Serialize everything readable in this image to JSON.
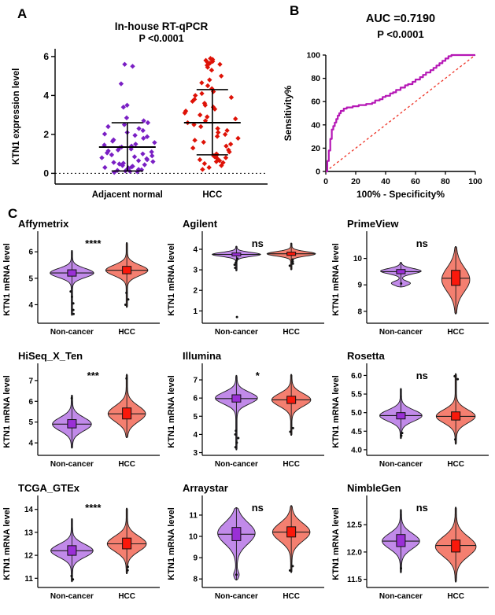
{
  "panels": {
    "a": {
      "label": "A"
    },
    "b": {
      "label": "B"
    },
    "c": {
      "label": "C"
    }
  },
  "chart_data": [
    {
      "id": "panel_a",
      "type": "scatter",
      "panel_label": "A",
      "title": "In-house RT-qPCR",
      "subtitle": "P <0.0001",
      "ylabel": "KTN1 expression level",
      "ylim": [
        -0.55,
        6.4
      ],
      "yticks": [
        "0",
        "2",
        "4",
        "6"
      ],
      "zero_line": 0,
      "groups": [
        {
          "label": "Adjacent normal",
          "color": "#7A1FC4",
          "mean": 1.35,
          "sd_low": 0.12,
          "sd_high": 2.6,
          "values": [
            0.05,
            0.08,
            0.1,
            0.12,
            0.15,
            0.18,
            0.2,
            0.22,
            0.25,
            0.28,
            0.3,
            0.33,
            0.36,
            0.4,
            0.44,
            0.48,
            0.52,
            0.56,
            0.6,
            0.65,
            0.7,
            0.75,
            0.8,
            0.85,
            0.9,
            0.95,
            1.0,
            1.05,
            1.1,
            1.15,
            1.2,
            1.25,
            1.3,
            1.35,
            1.4,
            1.45,
            1.5,
            1.58,
            1.65,
            1.72,
            1.8,
            1.88,
            1.95,
            2.02,
            2.1,
            2.2,
            2.3,
            2.4,
            2.5,
            2.6,
            2.7,
            2.85,
            3.4,
            3.5,
            4.6,
            5.5,
            5.6
          ]
        },
        {
          "label": "HCC",
          "color": "#DE1207",
          "mean": 2.6,
          "sd_low": 0.95,
          "sd_high": 4.3,
          "values": [
            0.2,
            0.3,
            0.4,
            0.5,
            0.55,
            0.6,
            0.65,
            0.7,
            0.75,
            0.8,
            0.85,
            0.9,
            0.95,
            1.0,
            1.1,
            1.2,
            1.3,
            1.4,
            1.5,
            1.6,
            1.7,
            1.8,
            1.9,
            2.0,
            2.1,
            2.2,
            2.3,
            2.4,
            2.5,
            2.6,
            2.7,
            2.8,
            2.9,
            3.0,
            3.1,
            3.2,
            3.3,
            3.4,
            3.5,
            3.6,
            3.7,
            3.8,
            3.9,
            4.0,
            4.1,
            4.2,
            4.35,
            4.5,
            4.65,
            4.8,
            5.0,
            5.3,
            5.45,
            5.55,
            5.6,
            5.65,
            5.7,
            5.75,
            5.8,
            5.85,
            5.9
          ]
        }
      ]
    },
    {
      "id": "panel_b",
      "type": "line",
      "panel_label": "B",
      "title": "AUC =0.7190",
      "subtitle": "P <0.0001",
      "xlabel": "100% - Specificity%",
      "ylabel": "Sensitivity%",
      "xlim": [
        0,
        100
      ],
      "ylim": [
        0,
        100
      ],
      "xticks": [
        0,
        20,
        40,
        60,
        80,
        100
      ],
      "yticks": [
        0,
        20,
        40,
        60,
        80,
        100
      ],
      "roc_color": "#B517B5",
      "diagonal_color": "#EE3124",
      "roc_points": [
        [
          0,
          0
        ],
        [
          1,
          4
        ],
        [
          1,
          9
        ],
        [
          2,
          13
        ],
        [
          2,
          18
        ],
        [
          3,
          23
        ],
        [
          3,
          28
        ],
        [
          4,
          32
        ],
        [
          4,
          36
        ],
        [
          5,
          39
        ],
        [
          6,
          42
        ],
        [
          7,
          45
        ],
        [
          8,
          48
        ],
        [
          9,
          50
        ],
        [
          10,
          52
        ],
        [
          12,
          54
        ],
        [
          14,
          55
        ],
        [
          18,
          56
        ],
        [
          22,
          57
        ],
        [
          27,
          58
        ],
        [
          31,
          59
        ],
        [
          33,
          61
        ],
        [
          36,
          62
        ],
        [
          38,
          64
        ],
        [
          40,
          65
        ],
        [
          43,
          67
        ],
        [
          45,
          68
        ],
        [
          47,
          70
        ],
        [
          50,
          72
        ],
        [
          53,
          74
        ],
        [
          55,
          75
        ],
        [
          58,
          77
        ],
        [
          60,
          79
        ],
        [
          63,
          81
        ],
        [
          65,
          83
        ],
        [
          67,
          85
        ],
        [
          70,
          87
        ],
        [
          72,
          89
        ],
        [
          74,
          91
        ],
        [
          76,
          93
        ],
        [
          78,
          95
        ],
        [
          80,
          97
        ],
        [
          82,
          99
        ],
        [
          84,
          100
        ],
        [
          100,
          100
        ]
      ]
    },
    {
      "id": "panel_c",
      "type": "violin",
      "panel_label": "C",
      "ylabel": "KTN1 mRNA level",
      "categories": [
        "Non-cancer",
        "HCC"
      ],
      "violin_fill": {
        "noncancer": "#C18AE9",
        "hcc": "#F47F70"
      },
      "box_fill": {
        "noncancer": "#9A2FD6",
        "hcc": "#FA180B"
      },
      "plots": [
        {
          "title": "Affymetrix",
          "significance": "****",
          "ylim": [
            3.3,
            6.6
          ],
          "yticks": [
            "4",
            "5",
            "6"
          ],
          "groups": [
            {
              "median": 5.2,
              "q1": 5.08,
              "q3": 5.32,
              "lo": 3.6,
              "hi": 6.05,
              "hw": 27,
              "modes": [
                [
                  5.2,
                  1,
                  0.17
                ]
              ],
              "outliers": [
                4.5,
                4.3,
                4.05,
                3.8,
                3.65
              ]
            },
            {
              "median": 5.3,
              "q1": 5.17,
              "q3": 5.45,
              "lo": 3.9,
              "hi": 6.35,
              "hw": 26,
              "modes": [
                [
                  5.3,
                  1,
                  0.2
                ]
              ],
              "outliers": [
                4.45,
                4.2,
                4.0
              ]
            }
          ]
        },
        {
          "title": "Agilent",
          "significance": "ns",
          "ylim": [
            0.4,
            4.65
          ],
          "yticks": [
            "1",
            "2",
            "3",
            "4"
          ],
          "groups": [
            {
              "median": 3.75,
              "q1": 3.68,
              "q3": 3.82,
              "lo": 2.95,
              "hi": 4.15,
              "hw": 30,
              "modes": [
                [
                  3.75,
                  1,
                  0.1
                ]
              ],
              "outliers": [
                3.55,
                3.45,
                3.35,
                3.25,
                3.1,
                0.7
              ]
            },
            {
              "median": 3.78,
              "q1": 3.7,
              "q3": 3.86,
              "lo": 3.0,
              "hi": 4.3,
              "hw": 30,
              "modes": [
                [
                  3.78,
                  1,
                  0.11
                ]
              ],
              "outliers": [
                3.5,
                3.4,
                3.3,
                3.2
              ]
            }
          ]
        },
        {
          "title": "PrimeView",
          "significance": "ns",
          "ylim": [
            7.55,
            10.85
          ],
          "yticks": [
            "8",
            "9",
            "10"
          ],
          "groups": [
            {
              "median": 9.5,
              "q1": 9.42,
              "q3": 9.58,
              "lo": 8.92,
              "hi": 9.85,
              "hw": 25,
              "modes": [
                [
                  9.52,
                  1,
                  0.1
                ],
                [
                  9.06,
                  0.45,
                  0.08
                ]
              ],
              "outliers": [
                9.05
              ]
            },
            {
              "median": 9.25,
              "q1": 8.98,
              "q3": 9.55,
              "lo": 7.9,
              "hi": 10.45,
              "hw": 17,
              "modes": [
                [
                  9.2,
                  1,
                  0.45
                ]
              ],
              "outliers": []
            }
          ]
        },
        {
          "title": "HiSeq_X_Ten",
          "significance": "***",
          "ylim": [
            3.4,
            7.6
          ],
          "yticks": [
            "4",
            "5",
            "6",
            "7"
          ],
          "groups": [
            {
              "median": 4.9,
              "q1": 4.72,
              "q3": 5.12,
              "lo": 3.75,
              "hi": 6.3,
              "hw": 24,
              "modes": [
                [
                  4.9,
                  1,
                  0.32
                ]
              ],
              "outliers": [
                6.15
              ]
            },
            {
              "median": 5.4,
              "q1": 5.15,
              "q3": 5.68,
              "lo": 4.25,
              "hi": 7.3,
              "hw": 23,
              "modes": [
                [
                  5.4,
                  1,
                  0.38
                ]
              ],
              "outliers": [
                7.1
              ]
            }
          ]
        },
        {
          "title": "Illumina",
          "significance": "*",
          "ylim": [
            2.85,
            7.65
          ],
          "yticks": [
            "3",
            "4",
            "5",
            "6",
            "7"
          ],
          "groups": [
            {
              "median": 5.97,
              "q1": 5.78,
              "q3": 6.18,
              "lo": 3.15,
              "hi": 7.25,
              "hw": 26,
              "modes": [
                [
                  6.0,
                  1,
                  0.32
                ]
              ],
              "outliers": [
                3.3,
                3.55,
                3.8,
                4.0,
                4.2
              ]
            },
            {
              "median": 5.9,
              "q1": 5.7,
              "q3": 6.1,
              "lo": 3.95,
              "hi": 7.3,
              "hw": 24,
              "modes": [
                [
                  5.9,
                  1,
                  0.35
                ]
              ],
              "outliers": [
                4.15,
                4.35
              ]
            }
          ]
        },
        {
          "title": "Rosetta",
          "significance": "ns",
          "ylim": [
            3.85,
            6.2
          ],
          "yticks": [
            "4.0",
            "4.5",
            "5.0",
            "5.5",
            "6.0"
          ],
          "groups": [
            {
              "median": 4.92,
              "q1": 4.83,
              "q3": 5.0,
              "lo": 4.3,
              "hi": 5.65,
              "hw": 26,
              "modes": [
                [
                  4.92,
                  1,
                  0.15
                ]
              ],
              "outliers": [
                4.45,
                4.38
              ]
            },
            {
              "median": 4.9,
              "q1": 4.8,
              "q3": 5.02,
              "lo": 4.15,
              "hi": 6.05,
              "hw": 24,
              "modes": [
                [
                  4.9,
                  1,
                  0.18
                ]
              ],
              "outliers": [
                5.9,
                5.98,
                4.28
              ]
            }
          ]
        },
        {
          "title": "TCGA_GTEx",
          "significance": "****",
          "ylim": [
            10.6,
            14.4
          ],
          "yticks": [
            "11",
            "12",
            "13",
            "14"
          ],
          "groups": [
            {
              "median": 12.2,
              "q1": 12.0,
              "q3": 12.42,
              "lo": 10.85,
              "hi": 13.6,
              "hw": 26,
              "modes": [
                [
                  12.2,
                  1,
                  0.28
                ]
              ],
              "outliers": [
                10.95,
                11.1
              ]
            },
            {
              "median": 12.5,
              "q1": 12.28,
              "q3": 12.75,
              "lo": 11.2,
              "hi": 14.05,
              "hw": 24,
              "modes": [
                [
                  12.5,
                  1,
                  0.33
                ]
              ],
              "outliers": [
                11.35,
                11.5
              ]
            }
          ]
        },
        {
          "title": "Arraystar",
          "significance": "ns",
          "ylim": [
            7.6,
            11.7
          ],
          "yticks": [
            "8",
            "9",
            "10",
            "11"
          ],
          "groups": [
            {
              "median": 10.1,
              "q1": 9.8,
              "q3": 10.42,
              "lo": 7.95,
              "hi": 11.35,
              "hw": 23,
              "modes": [
                [
                  10.15,
                  1,
                  0.5
                ],
                [
                  8.2,
                  0.12,
                  0.15
                ]
              ],
              "outliers": [
                8.2
              ]
            },
            {
              "median": 10.2,
              "q1": 9.97,
              "q3": 10.45,
              "lo": 8.3,
              "hi": 11.45,
              "hw": 23,
              "modes": [
                [
                  10.2,
                  1,
                  0.42
                ]
              ],
              "outliers": [
                8.6,
                8.4
              ]
            }
          ]
        },
        {
          "title": "NimbleGen",
          "significance": "ns",
          "ylim": [
            11.35,
            12.95
          ],
          "yticks": [
            "11.5",
            "12.0",
            "12.5"
          ],
          "groups": [
            {
              "median": 12.2,
              "q1": 12.1,
              "q3": 12.32,
              "lo": 11.62,
              "hi": 12.78,
              "hw": 23,
              "modes": [
                [
                  12.2,
                  1,
                  0.14
                ]
              ],
              "outliers": [
                11.7
              ]
            },
            {
              "median": 12.12,
              "q1": 12.0,
              "q3": 12.22,
              "lo": 11.45,
              "hi": 12.82,
              "hw": 25,
              "modes": [
                [
                  12.1,
                  1,
                  0.18
                ]
              ],
              "outliers": []
            }
          ]
        }
      ]
    }
  ]
}
